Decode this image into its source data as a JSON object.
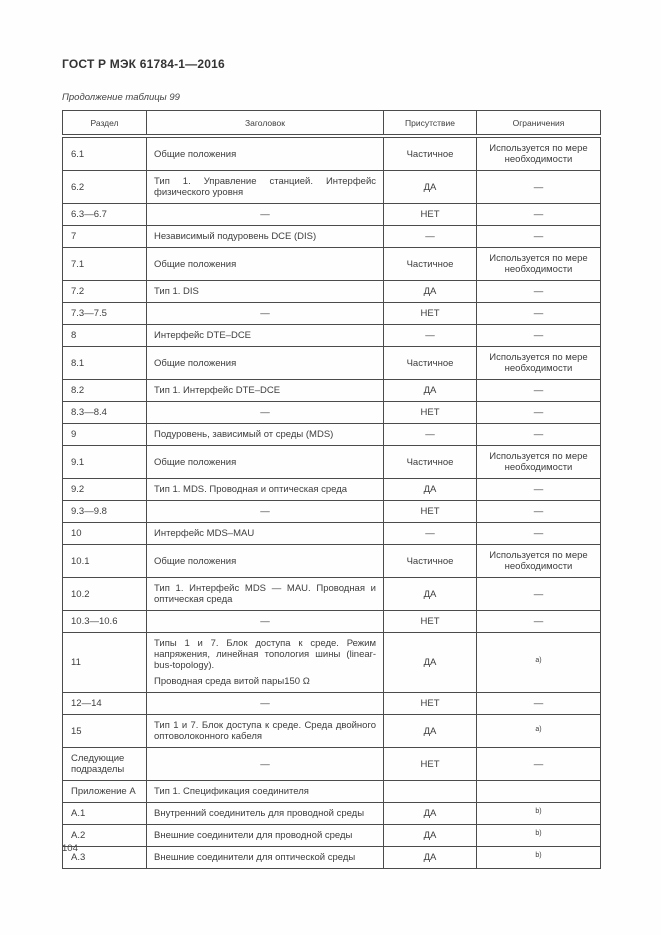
{
  "document": {
    "title": "ГОСТ Р МЭК 61784-1—2016",
    "table_caption": "Продолжение таблицы 99",
    "page_number": "104"
  },
  "table": {
    "columns": [
      "Раздел",
      "Заголовок",
      "Присутствие",
      "Ограничения"
    ],
    "rows": [
      {
        "section": "6.1",
        "heading": "Общие положения",
        "presence": "Частичное",
        "constraint": "Используется по мере необходимости",
        "constraint_sup": false
      },
      {
        "section": "6.2",
        "heading": "Тип 1. Управление станцией. Интерфейс физического уровня",
        "presence": "ДА",
        "constraint": "—",
        "constraint_sup": false
      },
      {
        "section": "6.3—6.7",
        "heading": "—",
        "presence": "НЕТ",
        "constraint": "—",
        "constraint_sup": false
      },
      {
        "section": "7",
        "heading": "Независимый подуровень DCE (DIS)",
        "presence": "—",
        "constraint": "—",
        "constraint_sup": false
      },
      {
        "section": "7.1",
        "heading": "Общие положения",
        "presence": "Частичное",
        "constraint": "Используется по мере необходимости",
        "constraint_sup": false
      },
      {
        "section": "7.2",
        "heading": "Тип 1. DIS",
        "presence": "ДА",
        "constraint": "—",
        "constraint_sup": false
      },
      {
        "section": "7.3—7.5",
        "heading": "—",
        "presence": "НЕТ",
        "constraint": "—",
        "constraint_sup": false
      },
      {
        "section": "8",
        "heading": "Интерфейс DTE–DCE",
        "presence": "—",
        "constraint": "—",
        "constraint_sup": false
      },
      {
        "section": "8.1",
        "heading": "Общие положения",
        "presence": "Частичное",
        "constraint": "Используется по мере необходимости",
        "constraint_sup": false
      },
      {
        "section": "8.2",
        "heading": "Тип 1. Интерфейс DTE–DCE",
        "presence": "ДА",
        "constraint": "—",
        "constraint_sup": false
      },
      {
        "section": "8.3—8.4",
        "heading": "—",
        "presence": "НЕТ",
        "constraint": "—",
        "constraint_sup": false
      },
      {
        "section": "9",
        "heading": "Подуровень, зависимый от среды (MDS)",
        "presence": "—",
        "constraint": "—",
        "constraint_sup": false
      },
      {
        "section": "9.1",
        "heading": "Общие положения",
        "presence": "Частичное",
        "constraint": "Используется по мере необходимости",
        "constraint_sup": false
      },
      {
        "section": "9.2",
        "heading": "Тип 1. MDS. Проводная и оптическая среда",
        "presence": "ДА",
        "constraint": "—",
        "constraint_sup": false
      },
      {
        "section": "9.3—9.8",
        "heading": "—",
        "presence": "НЕТ",
        "constraint": "—",
        "constraint_sup": false
      },
      {
        "section": "10",
        "heading": "Интерфейс MDS–MAU",
        "presence": "—",
        "constraint": "—",
        "constraint_sup": false
      },
      {
        "section": "10.1",
        "heading": "Общие положения",
        "presence": "Частичное",
        "constraint": "Используется по мере необходимости",
        "constraint_sup": false
      },
      {
        "section": "10.2",
        "heading": "Тип 1. Интерфейс MDS — MAU. Проводная и оптическая среда",
        "presence": "ДА",
        "constraint": "—",
        "constraint_sup": false
      },
      {
        "section": "10.3—10.6",
        "heading": "—",
        "presence": "НЕТ",
        "constraint": "—",
        "constraint_sup": false
      },
      {
        "section": "11",
        "heading": "Типы 1 и 7. Блок доступа к среде. Режим напряжения, линейная топология шины (linear-bus-topology).",
        "heading2": "Проводная среда витой пары150 Ω",
        "presence": "ДА",
        "constraint": "a)",
        "constraint_sup": true
      },
      {
        "section": "12—14",
        "heading": "—",
        "presence": "НЕТ",
        "constraint": "—",
        "constraint_sup": false
      },
      {
        "section": "15",
        "heading": "Тип 1 и 7. Блок доступа к среде. Среда двойного оптоволоконного кабеля",
        "presence": "ДА",
        "constraint": "a)",
        "constraint_sup": true
      },
      {
        "section": "Следующие подразделы",
        "heading": "—",
        "presence": "НЕТ",
        "constraint": "—",
        "constraint_sup": false
      },
      {
        "section": "Приложение А",
        "heading": "Тип 1. Спецификация соединителя",
        "presence": "",
        "constraint": "",
        "constraint_sup": false
      },
      {
        "section": "А.1",
        "heading": "Внутренний соединитель для проводной среды",
        "presence": "ДА",
        "constraint": "b)",
        "constraint_sup": true
      },
      {
        "section": "А.2",
        "heading": "Внешние соединители для проводной среды",
        "presence": "ДА",
        "constraint": "b)",
        "constraint_sup": true
      },
      {
        "section": "А.3",
        "heading": "Внешние соединители для оптической среды",
        "presence": "ДА",
        "constraint": "b)",
        "constraint_sup": true
      }
    ]
  }
}
